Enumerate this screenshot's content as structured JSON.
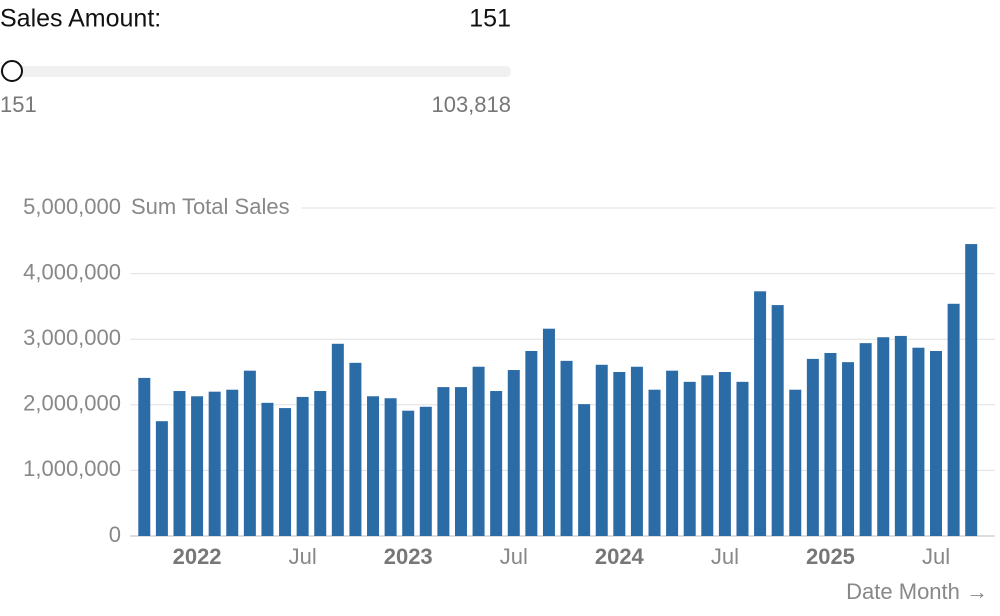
{
  "slider": {
    "label": "Sales Amount:",
    "value": 151,
    "min": 151,
    "max": {
      "value": 103818,
      "label": "103,818"
    }
  },
  "chart_data": {
    "type": "bar",
    "y_label": "Sum Total Sales",
    "x_label": "Date Month →",
    "color": "#2b6ba6",
    "grid": true,
    "categories": [
      "2021-10",
      "2021-11",
      "2021-12",
      "2022-01",
      "2022-02",
      "2022-03",
      "2022-04",
      "2022-05",
      "2022-06",
      "2022-07",
      "2022-08",
      "2022-09",
      "2022-10",
      "2022-11",
      "2022-12",
      "2023-01",
      "2023-02",
      "2023-03",
      "2023-04",
      "2023-05",
      "2023-06",
      "2023-07",
      "2023-08",
      "2023-09",
      "2023-10",
      "2023-11",
      "2023-12",
      "2024-01",
      "2024-02",
      "2024-03",
      "2024-04",
      "2024-05",
      "2024-06",
      "2024-07",
      "2024-08",
      "2024-09",
      "2024-10",
      "2024-11",
      "2024-12",
      "2025-01",
      "2025-02",
      "2025-03",
      "2025-04",
      "2025-05",
      "2025-06",
      "2025-07",
      "2025-08",
      "2025-09"
    ],
    "values": [
      2410000,
      1750000,
      2210000,
      2130000,
      2200000,
      2230000,
      2520000,
      2030000,
      1950000,
      2120000,
      2210000,
      2930000,
      2640000,
      2130000,
      2100000,
      1910000,
      1970000,
      2270000,
      2270000,
      2580000,
      2210000,
      2530000,
      2820000,
      3160000,
      2670000,
      2010000,
      2610000,
      2500000,
      2580000,
      2230000,
      2520000,
      2350000,
      2450000,
      2500000,
      2350000,
      3730000,
      3520000,
      2230000,
      2700000,
      2790000,
      2650000,
      2940000,
      3030000,
      3050000,
      2870000,
      2820000,
      3540000,
      4450000
    ],
    "ylim": [
      0,
      5000000
    ],
    "yticks": [
      0,
      {
        "value": 1000000,
        "label": "1,000,000"
      },
      {
        "value": 2000000,
        "label": "2,000,000"
      },
      {
        "value": 3000000,
        "label": "3,000,000"
      },
      {
        "value": 4000000,
        "label": "4,000,000"
      },
      {
        "value": 5000000,
        "label": "5,000,000"
      }
    ],
    "xticks": [
      {
        "value": "2022-01",
        "label": "2022"
      },
      {
        "value": "2022-07",
        "label": "Jul"
      },
      {
        "value": "2023-01",
        "label": "2023"
      },
      {
        "value": "2023-07",
        "label": "Jul"
      },
      {
        "value": "2024-01",
        "label": "2024"
      },
      {
        "value": "2024-07",
        "label": "Jul"
      },
      {
        "value": "2025-01",
        "label": "2025"
      },
      {
        "value": "2025-07",
        "label": "Jul"
      }
    ]
  }
}
